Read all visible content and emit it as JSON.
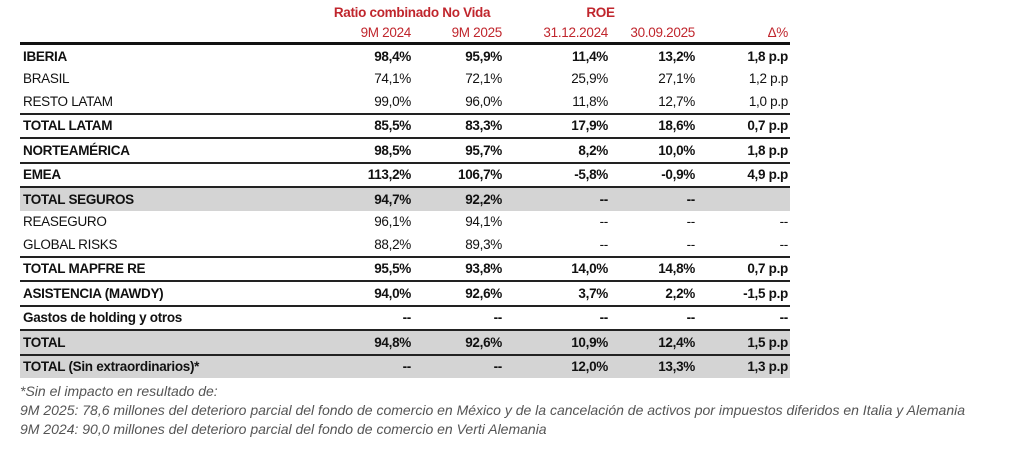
{
  "header": {
    "group1": "Ratio combinado No Vida",
    "group2": "ROE",
    "cols": [
      "9M 2024",
      "9M 2025",
      "31.12.2024",
      "30.09.2025",
      "Δ%"
    ]
  },
  "rows": [
    {
      "label": "IBERIA",
      "v": [
        "98,4%",
        "95,9%",
        "11,4%",
        "13,2%",
        "1,8 p.p"
      ]
    },
    {
      "label": "BRASIL",
      "v": [
        "74,1%",
        "72,1%",
        "25,9%",
        "27,1%",
        "1,2 p.p"
      ]
    },
    {
      "label": "RESTO LATAM",
      "v": [
        "99,0%",
        "96,0%",
        "11,8%",
        "12,7%",
        "1,0 p.p"
      ]
    },
    {
      "label": "TOTAL LATAM",
      "v": [
        "85,5%",
        "83,3%",
        "17,9%",
        "18,6%",
        "0,7 p.p"
      ]
    },
    {
      "label": "NORTEAMÉRICA",
      "v": [
        "98,5%",
        "95,7%",
        "8,2%",
        "10,0%",
        "1,8 p.p"
      ]
    },
    {
      "label": "EMEA",
      "v": [
        "113,2%",
        "106,7%",
        "-5,8%",
        "-0,9%",
        "4,9 p.p"
      ]
    },
    {
      "label": "TOTAL SEGUROS",
      "v": [
        "94,7%",
        "92,2%",
        "--",
        "--",
        ""
      ]
    },
    {
      "label": "REASEGURO",
      "v": [
        "96,1%",
        "94,1%",
        "--",
        "--",
        "--"
      ]
    },
    {
      "label": "GLOBAL RISKS",
      "v": [
        "88,2%",
        "89,3%",
        "--",
        "--",
        "--"
      ]
    },
    {
      "label": "TOTAL MAPFRE RE",
      "v": [
        "95,5%",
        "93,8%",
        "14,0%",
        "14,8%",
        "0,7 p.p"
      ]
    },
    {
      "label": "ASISTENCIA (MAWDY)",
      "v": [
        "94,0%",
        "92,6%",
        "3,7%",
        "2,2%",
        "-1,5 p.p"
      ]
    },
    {
      "label": "Gastos de holding y otros",
      "v": [
        "--",
        "--",
        "--",
        "--",
        "--"
      ]
    },
    {
      "label": "TOTAL",
      "v": [
        "94,8%",
        "92,6%",
        "10,9%",
        "12,4%",
        "1,5 p.p"
      ]
    },
    {
      "label": "TOTAL (Sin extraordinarios)*",
      "v": [
        "--",
        "--",
        "12,0%",
        "13,3%",
        "1,3 p.p"
      ]
    }
  ],
  "notes": [
    "*Sin el impacto en resultado de:",
    "9M 2025: 78,6 millones del deterioro parcial del fondo de comercio en México y de la cancelación de activos por impuestos diferidos en Italia y Alemania",
    "9M 2024: 90,0 millones del deterioro parcial del fondo de comercio en Verti Alemania"
  ]
}
